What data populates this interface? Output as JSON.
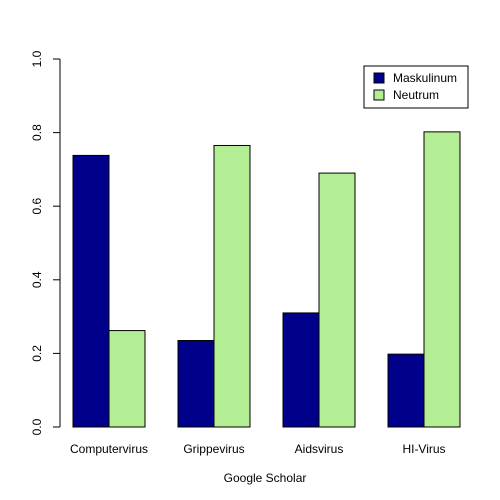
{
  "chart_data": {
    "type": "bar",
    "categories": [
      "Computervirus",
      "Grippevirus",
      "Aidsvirus",
      "HI-Virus"
    ],
    "series": [
      {
        "name": "Maskulinum",
        "values": [
          0.738,
          0.235,
          0.31,
          0.198
        ],
        "color": "#00008b"
      },
      {
        "name": "Neutrum",
        "values": [
          0.262,
          0.765,
          0.69,
          0.802
        ],
        "color": "#b3ee94"
      }
    ],
    "title": "",
    "xlabel": "Google Scholar",
    "ylabel": "",
    "ylim": [
      0,
      1
    ],
    "yticks": [
      "0.0",
      "0.2",
      "0.4",
      "0.6",
      "0.8",
      "1.0"
    ],
    "grid": false,
    "legend_position": "top-right"
  }
}
